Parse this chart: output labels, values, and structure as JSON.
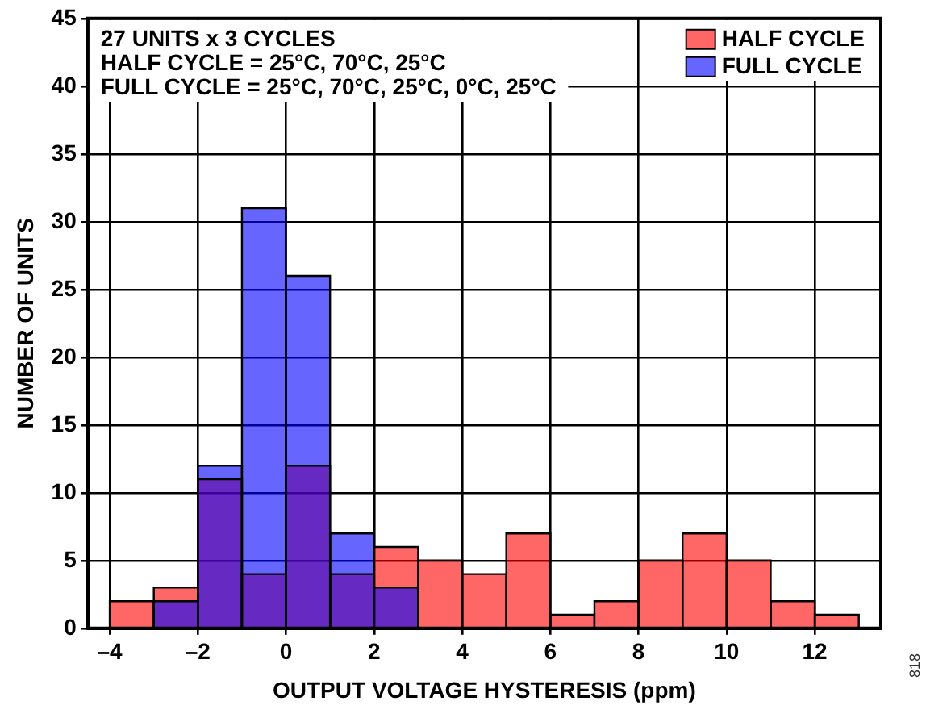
{
  "chart_data": {
    "type": "histogram",
    "xlabel": "OUTPUT VOLTAGE HYSTERESIS (ppm)",
    "ylabel": "NUMBER OF UNITS",
    "bins": [
      -4,
      -3,
      -2,
      -1,
      0,
      1,
      2,
      3,
      4,
      5,
      6,
      7,
      8,
      9,
      10,
      11,
      12,
      13
    ],
    "series": [
      {
        "name": "HALF CYCLE",
        "color": "#ff6666",
        "values": [
          2,
          3,
          11,
          4,
          12,
          4,
          6,
          5,
          4,
          7,
          1,
          2,
          5,
          7,
          5,
          2,
          1
        ]
      },
      {
        "name": "FULL CYCLE",
        "color": "#6666ff",
        "values": [
          0,
          2,
          12,
          31,
          26,
          7,
          3,
          0,
          0,
          0,
          0,
          0,
          0,
          0,
          0,
          0,
          0
        ]
      }
    ],
    "xlim": [
      -4.5,
      13.5
    ],
    "xticks": [
      {
        "value": -4,
        "label": "–4"
      },
      {
        "value": -2,
        "label": "–2"
      },
      0,
      2,
      4,
      6,
      8,
      10,
      12
    ],
    "ylim": [
      0,
      45
    ],
    "yticks": [
      0,
      5,
      10,
      15,
      20,
      25,
      30,
      35,
      40,
      45
    ],
    "grid": true,
    "legend": "top right",
    "annotations": [
      "27 UNITS x 3 CYCLES",
      "HALF CYCLE = 25°C, 70°C, 25°C",
      "FULL CYCLE = 25°C, 70°C, 25°C, 0°C, 25°C",
      "818"
    ]
  }
}
